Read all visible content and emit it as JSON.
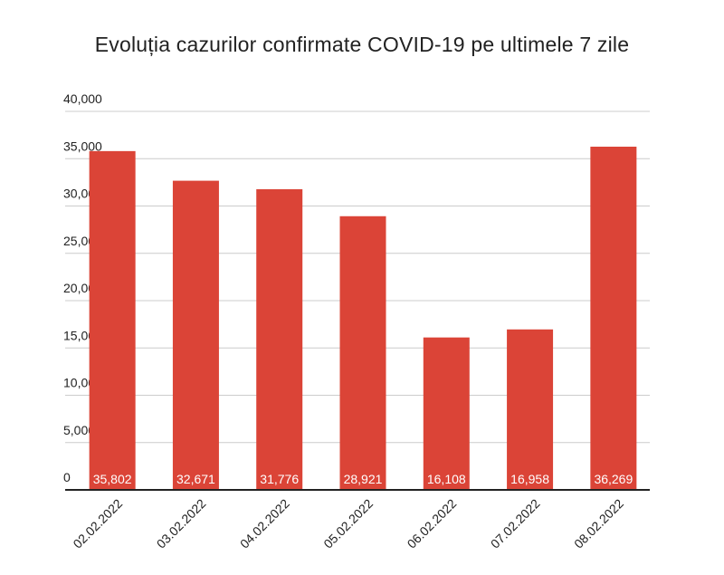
{
  "chart_data": {
    "type": "bar",
    "title": "Evoluția cazurilor confirmate COVID-19 pe ultimele 7 zile",
    "xlabel": "",
    "ylabel": "",
    "categories": [
      "02.02.2022",
      "03.02.2022",
      "04.02.2022",
      "05.02.2022",
      "06.02.2022",
      "07.02.2022",
      "08.02.2022"
    ],
    "values": [
      35802,
      32671,
      31776,
      28921,
      16108,
      16958,
      36269
    ],
    "data_labels": [
      "35,802",
      "32,671",
      "31,776",
      "28,921",
      "16,108",
      "16,958",
      "36,269"
    ],
    "ylim": [
      0,
      40000
    ],
    "yticks": [
      0,
      5000,
      10000,
      15000,
      20000,
      25000,
      30000,
      35000,
      40000
    ],
    "ytick_labels": [
      "0",
      "5,000",
      "10,000",
      "15,000",
      "20,000",
      "25,000",
      "30,000",
      "35,000",
      "40,000"
    ],
    "grid": true,
    "legend": "none",
    "bar_color": "#db4437",
    "grid_color": "#cccccc",
    "axis_color": "#222222"
  }
}
